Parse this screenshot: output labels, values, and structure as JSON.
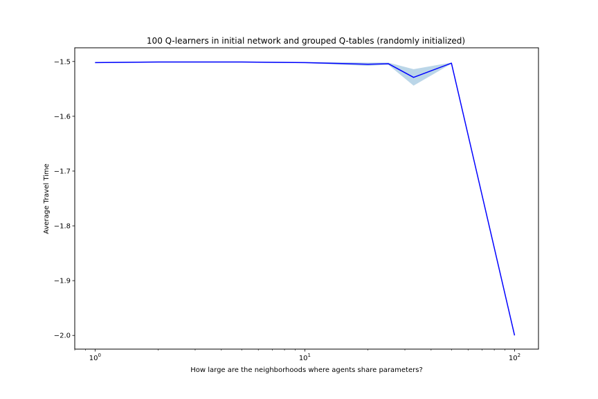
{
  "chart_data": {
    "type": "line",
    "title": "100 Q-learners in initial network and grouped Q-tables (randomly initialized)",
    "xlabel": "How large are the neighborhoods where agents share parameters?",
    "ylabel": "Average Travel Time",
    "xscale": "log",
    "xlim": [
      0.8,
      130
    ],
    "ylim": [
      -2.025,
      -1.475
    ],
    "x_ticks": [
      {
        "value": 1,
        "base": "10",
        "exp": "0"
      },
      {
        "value": 10,
        "base": "10",
        "exp": "1"
      },
      {
        "value": 100,
        "base": "10",
        "exp": "2"
      }
    ],
    "y_ticks": [
      {
        "value": -1.5,
        "label": "−1.5"
      },
      {
        "value": -1.6,
        "label": "−1.6"
      },
      {
        "value": -1.7,
        "label": "−1.7"
      },
      {
        "value": -1.8,
        "label": "−1.8"
      },
      {
        "value": -1.9,
        "label": "−1.9"
      },
      {
        "value": -2.0,
        "label": "−2.0"
      }
    ],
    "grid": false,
    "legend": "none",
    "series": [
      {
        "color": "#0000ff",
        "band_color": "#1f77b4",
        "x": [
          1,
          2,
          3,
          4,
          5,
          10,
          20,
          25,
          33,
          50,
          100
        ],
        "y": [
          -1.502,
          -1.501,
          -1.501,
          -1.501,
          -1.501,
          -1.502,
          -1.505,
          -1.504,
          -1.529,
          -1.503,
          -2.0
        ],
        "lower": [
          -1.503,
          -1.502,
          -1.502,
          -1.502,
          -1.502,
          -1.503,
          -1.508,
          -1.506,
          -1.544,
          -1.504,
          -2.0
        ],
        "upper": [
          -1.501,
          -1.5,
          -1.5,
          -1.5,
          -1.5,
          -1.501,
          -1.502,
          -1.502,
          -1.514,
          -1.502,
          -2.0
        ]
      }
    ]
  }
}
